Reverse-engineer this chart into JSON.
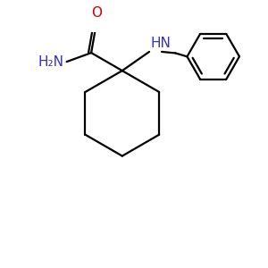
{
  "bg_color": "#ffffff",
  "bond_color": "#000000",
  "label_color_blue": "#3333bb",
  "label_color_red": "#cc0000",
  "line_width": 1.6,
  "fig_size": [
    3.0,
    3.0
  ],
  "dpi": 100,
  "amide_label": "H₂N",
  "oxygen_label": "O",
  "nh_label": "HN"
}
